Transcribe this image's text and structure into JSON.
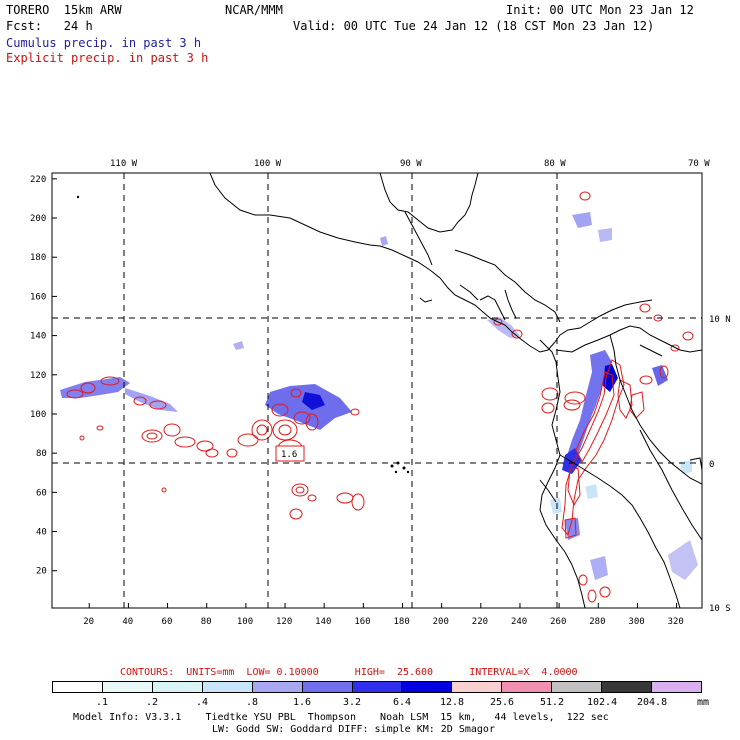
{
  "header": {
    "model": "TORERO  15km ARW",
    "org": "NCAR/MMM",
    "init": "Init: 00 UTC Mon 23 Jan 12",
    "fcst": "Fcst:   24 h",
    "valid": "Valid: 00 UTC Tue 24 Jan 12 (18 CST Mon 23 Jan 12)",
    "field1": "Cumulus precip. in past 3 h",
    "field2": "Explicit precip. in past 3 h"
  },
  "colors": {
    "field1": "#2020a0",
    "field2": "#d01010",
    "grid": "#000000",
    "cumulus": "#3a3ae8",
    "explicit": "#e01a1a"
  },
  "map": {
    "top_lon_labels": [
      "110 W",
      "100 W",
      "90 W",
      "80 W",
      "70 W"
    ],
    "right_lat_labels": [
      "10 N",
      "0",
      "10 S"
    ],
    "x_ticks": [
      "20",
      "40",
      "60",
      "80",
      "100",
      "120",
      "140",
      "160",
      "180",
      "200",
      "220",
      "240",
      "260",
      "280",
      "300",
      "320"
    ],
    "y_ticks": [
      "220",
      "200",
      "180",
      "160",
      "140",
      "120",
      "100",
      "80",
      "60",
      "40",
      "20"
    ],
    "contour_label": "1.6"
  },
  "contours": {
    "text": "CONTOURS:  UNITS=mm  LOW= 0.10000      HIGH=  25.600      INTERVAL=X  4.0000"
  },
  "colorbar": {
    "labels": [
      ".1",
      ".2",
      ".4",
      ".8",
      "1.6",
      "3.2",
      "6.4",
      "12.8",
      "25.6",
      "51.2",
      "102.4",
      "204.8"
    ],
    "unit": "mm",
    "colors": [
      "#ffffff",
      "#e8f8f8",
      "#d8f4f4",
      "#c8e4f8",
      "#a8a8f0",
      "#7070ec",
      "#3030ec",
      "#0000e0",
      "#f8d0d0",
      "#f090b0",
      "#c0c0c0",
      "#383838",
      "#d8b0f0"
    ]
  },
  "model_info": {
    "line1": "Model Info: V3.3.1    Tiedtke YSU PBL  Thompson    Noah LSM  15 km,   44 levels,  122 sec",
    "line2": "LW: Godd SW: Goddard DIFF: simple KM: 2D Smagor"
  }
}
